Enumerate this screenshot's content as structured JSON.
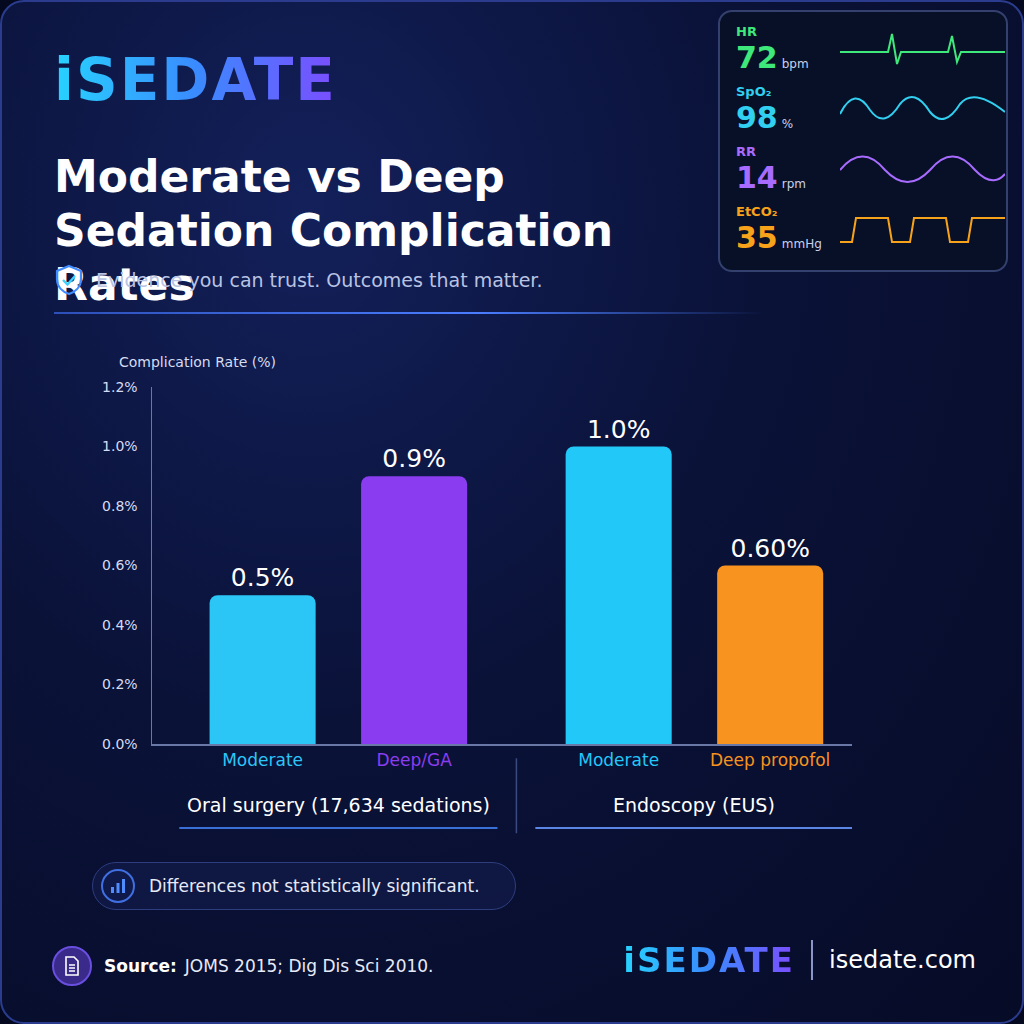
{
  "header": {
    "logo": "iSEDATE",
    "title": "Moderate vs Deep Sedation Complication Rates",
    "subtitle": "Evidence you can trust. Outcomes that matter."
  },
  "monitor": [
    {
      "label": "HR",
      "value": 72,
      "unit": "bpm",
      "color": "#3ee87a"
    },
    {
      "label": "SpO₂",
      "value": 98,
      "unit": "%",
      "color": "#31d0f0"
    },
    {
      "label": "RR",
      "value": 14,
      "unit": "rpm",
      "color": "#a86bff"
    },
    {
      "label": "EtCO₂",
      "value": 35,
      "unit": "mmHg",
      "color": "#f7a21b"
    }
  ],
  "chart_data": {
    "type": "bar",
    "ylabel": "Complication Rate (%)",
    "categories": [
      "Moderate",
      "Deep/GA",
      "Moderate",
      "Deep propofol"
    ],
    "values": [
      0.5,
      0.9,
      1.0,
      0.6
    ],
    "value_labels": [
      "0.5%",
      "0.9%",
      "1.0%",
      "0.60%"
    ],
    "colors": [
      "#2cc6f6",
      "#8a3df0",
      "#22c8f8",
      "#f7931e"
    ],
    "data_labels": true,
    "ylim": [
      0,
      1.2
    ],
    "yticks": [
      {
        "value": 0,
        "label": "0.0%"
      },
      {
        "value": 0.2,
        "label": "0.2%"
      },
      {
        "value": 0.4,
        "label": "0.4%"
      },
      {
        "value": 0.6,
        "label": "0.6%"
      },
      {
        "value": 0.8,
        "label": "0.8%"
      },
      {
        "value": 1.0,
        "label": "1.0%"
      },
      {
        "value": 1.2,
        "label": "1.2%"
      }
    ],
    "grid": false,
    "groups": [
      {
        "label": "Oral surgery (17,634 sedations)",
        "categories": [
          "Moderate",
          "Deep/GA"
        ]
      },
      {
        "label": "Endoscopy (EUS)",
        "categories": [
          "Moderate",
          "Deep propofol"
        ]
      }
    ]
  },
  "note": "Differences not statistically significant.",
  "source": {
    "label": "Source:",
    "text": "JOMS 2015; Dig Dis Sci 2010."
  },
  "footer": {
    "logo": "iSEDATE",
    "url": "isedate.com"
  }
}
